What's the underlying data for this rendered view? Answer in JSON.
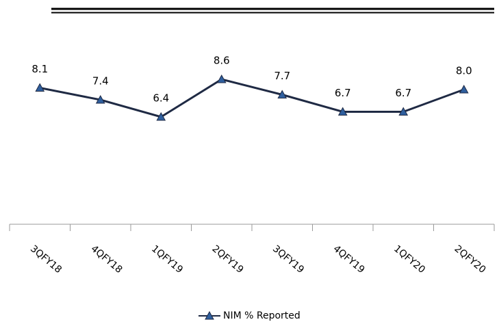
{
  "chart_data": {
    "type": "line",
    "categories": [
      "3QFY18",
      "4QFY18",
      "1QFY19",
      "2QFY19",
      "3QFY19",
      "4QFY19",
      "1QFY20",
      "2QFY20"
    ],
    "series": [
      {
        "name": "NIM % Reported",
        "color": "#1f2a44",
        "marker_color": "#2f5f9e",
        "values": [
          8.1,
          7.4,
          6.4,
          8.6,
          7.7,
          6.7,
          6.7,
          8.0
        ],
        "value_labels": [
          "8.1",
          "7.4",
          "6.4",
          "8.6",
          "7.7",
          "6.7",
          "6.7",
          "8.0"
        ]
      }
    ],
    "ylim": [
      0,
      10
    ]
  }
}
